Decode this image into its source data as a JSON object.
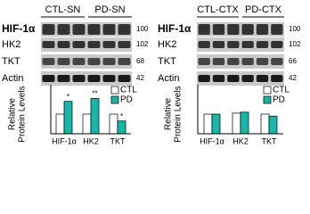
{
  "blots": [
    {
      "groups": [
        "CTL-SN",
        "PD-SN"
      ],
      "rows": [
        "HIF-1α",
        "HK2",
        "TKT",
        "Actin"
      ],
      "mw": [
        "100",
        "102",
        "68",
        "42"
      ]
    },
    {
      "groups": [
        "CTL-CTX",
        "PD-CTX"
      ],
      "rows": [
        "HIF-1α",
        "HK2",
        "TKT",
        "Actin"
      ],
      "mw": [
        "100",
        "102",
        "66",
        "42"
      ]
    }
  ],
  "chart_data": [
    {
      "type": "bar",
      "ylabel": [
        "Relative",
        "Protein Levels"
      ],
      "categories": [
        "HIF-1α",
        "HK2",
        "TKT"
      ],
      "series": [
        {
          "name": "CTL",
          "color": "#ffffff",
          "values": [
            1.0,
            1.0,
            1.0
          ]
        },
        {
          "name": "PD",
          "color": "#1ab5a8",
          "values": [
            1.65,
            1.8,
            0.65
          ],
          "annotations": [
            "*",
            "**",
            "*"
          ]
        }
      ],
      "ylim": [
        0,
        2.5
      ]
    },
    {
      "type": "bar",
      "ylabel": [
        "Relative",
        "Protein Levels"
      ],
      "categories": [
        "HIF-1α",
        "HK2",
        "TKT"
      ],
      "series": [
        {
          "name": "CTL",
          "color": "#ffffff",
          "values": [
            1.0,
            1.05,
            1.0
          ]
        },
        {
          "name": "PD",
          "color": "#1ab5a8",
          "values": [
            1.0,
            1.1,
            0.9
          ]
        }
      ],
      "ylim": [
        0,
        2.5
      ]
    }
  ]
}
